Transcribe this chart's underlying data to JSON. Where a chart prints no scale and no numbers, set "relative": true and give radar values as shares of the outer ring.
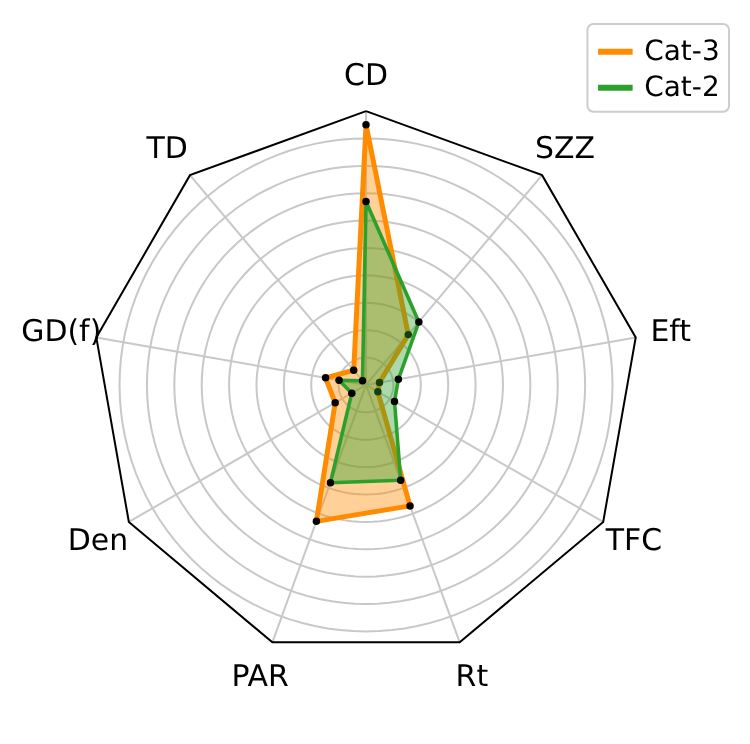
{
  "chart_data": {
    "type": "radar",
    "relative": true,
    "grid": true,
    "legend": "top right",
    "marker": "circle",
    "categories": [
      "CD",
      "SZZ",
      "Eft",
      "TFC",
      "Rt",
      "PAR",
      "Den",
      "GD(f)",
      "TD"
    ],
    "series": [
      {
        "name": "Cat-3",
        "color": "#ff8c00",
        "values": [
          0.95,
          0.24,
          0.05,
          0.05,
          0.47,
          0.53,
          0.13,
          0.15,
          0.07
        ]
      },
      {
        "name": "Cat-2",
        "color": "#2ca02c",
        "values": [
          0.67,
          0.3,
          0.12,
          0.12,
          0.37,
          0.38,
          0.06,
          0.1,
          0.02
        ]
      }
    ]
  }
}
